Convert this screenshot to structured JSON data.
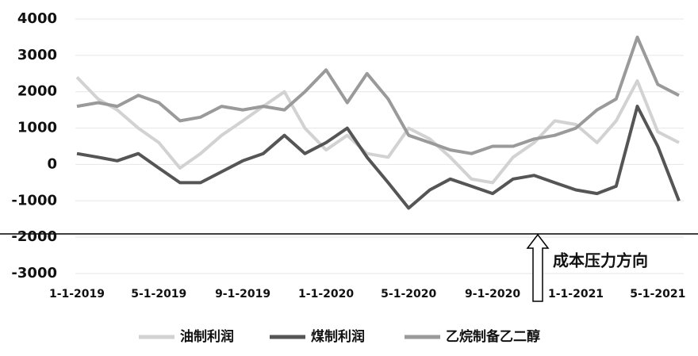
{
  "chart_data": {
    "type": "line",
    "annotation": "成本压力方向",
    "x": [
      "2019-01-01",
      "2019-02-01",
      "2019-03-01",
      "2019-04-01",
      "2019-05-01",
      "2019-06-01",
      "2019-07-01",
      "2019-08-01",
      "2019-09-01",
      "2019-10-01",
      "2019-11-01",
      "2019-12-01",
      "2020-01-01",
      "2020-02-01",
      "2020-03-01",
      "2020-04-01",
      "2020-05-01",
      "2020-06-01",
      "2020-07-01",
      "2020-08-01",
      "2020-09-01",
      "2020-10-01",
      "2020-11-01",
      "2020-12-01",
      "2021-01-01",
      "2021-02-01",
      "2021-03-01",
      "2021-04-01",
      "2021-05-01",
      "2021-06-01"
    ],
    "series": [
      {
        "name": "油制利润",
        "color": "#d2d2d2",
        "values": [
          2400,
          1800,
          1500,
          1000,
          600,
          -100,
          300,
          800,
          1200,
          1600,
          2000,
          1000,
          400,
          800,
          300,
          200,
          1000,
          700,
          200,
          -400,
          -500,
          200,
          600,
          1200,
          1100,
          600,
          1200,
          2300,
          900,
          600
        ]
      },
      {
        "name": "煤制利润",
        "color": "#555555",
        "values": [
          300,
          200,
          100,
          300,
          -100,
          -500,
          -500,
          -200,
          100,
          300,
          800,
          300,
          600,
          1000,
          200,
          -500,
          -1200,
          -700,
          -400,
          -600,
          -800,
          -400,
          -300,
          -500,
          -700,
          -800,
          -600,
          1600,
          500,
          -1000
        ]
      },
      {
        "name": "乙烷制备乙二醇",
        "color": "#9a9a9a",
        "values": [
          1600,
          1700,
          1600,
          1900,
          1700,
          1200,
          1300,
          1600,
          1500,
          1600,
          1500,
          2000,
          2600,
          1700,
          2500,
          1800,
          800,
          600,
          400,
          300,
          500,
          500,
          700,
          800,
          1000,
          1500,
          1800,
          3500,
          2200,
          1900
        ]
      }
    ],
    "xlim": [
      "2019-01-01",
      "2021-06-08"
    ],
    "xticks": [
      {
        "value": "2019-01-01",
        "label": "1-1-2019"
      },
      {
        "value": "2019-05-01",
        "label": "5-1-2019"
      },
      {
        "value": "2019-09-01",
        "label": "9-1-2019"
      },
      {
        "value": "2020-01-01",
        "label": "1-1-2020"
      },
      {
        "value": "2020-05-01",
        "label": "5-1-2020"
      },
      {
        "value": "2020-09-01",
        "label": "9-1-2020"
      },
      {
        "value": "2021-01-01",
        "label": "1-1-2021"
      },
      {
        "value": "2021-05-01",
        "label": "5-1-2021"
      }
    ],
    "ylim": [
      -3000,
      4000
    ],
    "yticks": [
      4000,
      3000,
      2000,
      1000,
      0,
      -1000,
      -2000,
      -3000
    ],
    "grid": true
  }
}
